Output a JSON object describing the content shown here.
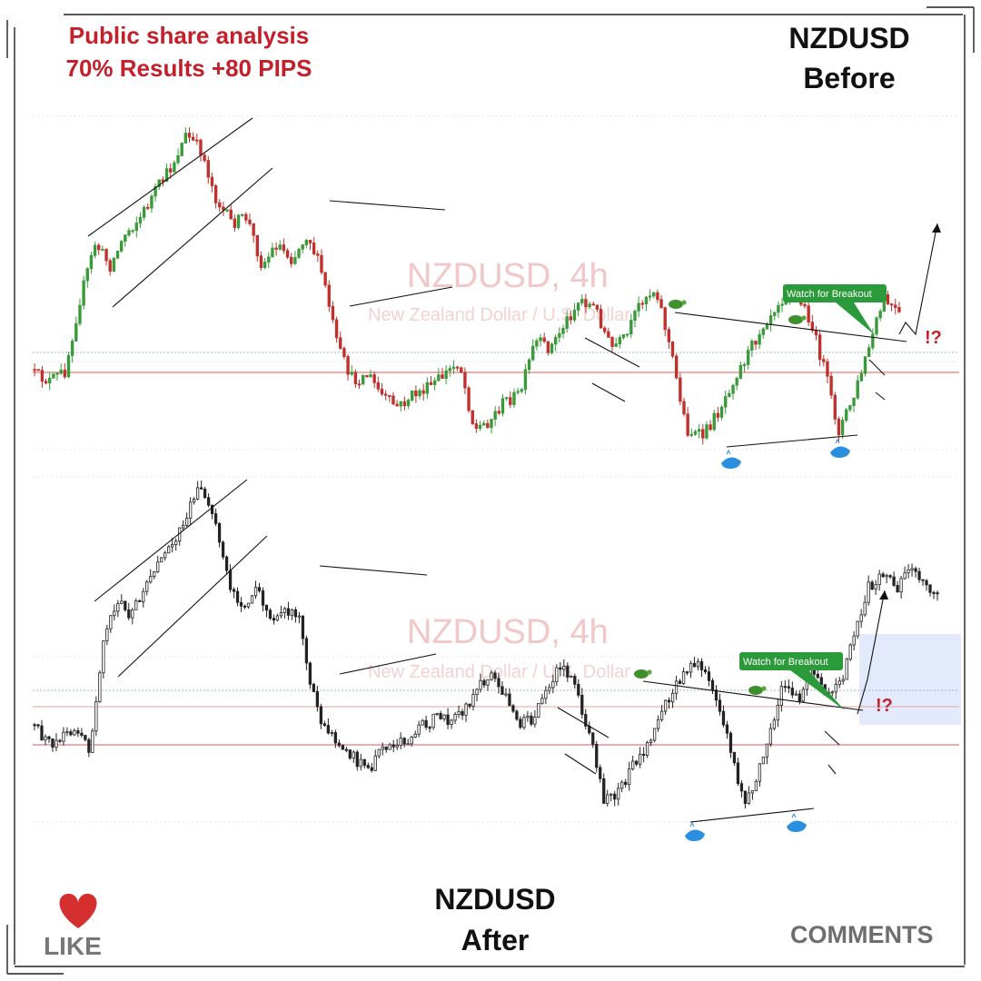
{
  "header": {
    "line1": "Public share analysis",
    "line2": "70% Results +80 PIPS"
  },
  "top_chart": {
    "pair": "NZDUSD",
    "state": "Before",
    "watermark_symbol": "NZDUSD, 4h",
    "watermark_name": "New Zealand Dollar / U.S. Dollar",
    "callout": "Watch for Breakout",
    "mark": "!?"
  },
  "bottom_chart": {
    "pair": "NZDUSD",
    "state": "After",
    "watermark_symbol": "NZDUSD, 4h",
    "watermark_name": "New Zealand Dollar / U.S. Dollar",
    "callout": "Watch for Breakout",
    "mark": "!?"
  },
  "footer": {
    "like": "LIKE",
    "comments": "COMMENTS"
  },
  "colors": {
    "headline": "#c4202b",
    "bull_candle": "#3b9a3b",
    "bear_candle": "#c0302c",
    "after_candle": "#222222",
    "callout": "#2a9a3a",
    "level_line": "#e35a5a",
    "highlight_box": "#dde6fb",
    "heart": "#d62f2f",
    "whale": "#2b8fe0",
    "turtle": "#3f8f2f"
  },
  "icons": [
    "turtle-icon",
    "whale-icon",
    "heart-icon",
    "arrow-icon"
  ],
  "chart_data": [
    {
      "type": "candlestick",
      "title": "NZDUSD, 4h",
      "subtitle": "New Zealand Dollar / U.S. Dollar",
      "state": "Before",
      "shape": [
        0.78,
        0.8,
        0.77,
        0.55,
        0.38,
        0.45,
        0.35,
        0.3,
        0.22,
        0.15,
        0.05,
        0.1,
        0.25,
        0.32,
        0.3,
        0.45,
        0.38,
        0.43,
        0.35,
        0.48,
        0.7,
        0.8,
        0.78,
        0.85,
        0.88,
        0.84,
        0.82,
        0.78,
        0.74,
        0.95,
        0.92,
        0.86,
        0.84,
        0.68,
        0.7,
        0.62,
        0.55,
        0.58,
        0.7,
        0.67,
        0.55,
        0.52,
        0.72,
        0.95,
        0.97,
        0.9,
        0.8,
        0.72,
        0.63,
        0.56,
        0.52,
        0.6,
        0.75,
        0.95,
        0.85,
        0.7,
        0.55,
        0.6
      ]
    },
    {
      "type": "candlestick",
      "title": "NZDUSD, 4h",
      "subtitle": "New Zealand Dollar / U.S. Dollar",
      "state": "After",
      "shape": [
        0.72,
        0.78,
        0.76,
        0.74,
        0.8,
        0.45,
        0.35,
        0.4,
        0.3,
        0.25,
        0.18,
        0.1,
        0.02,
        0.12,
        0.3,
        0.38,
        0.32,
        0.42,
        0.38,
        0.4,
        0.62,
        0.75,
        0.78,
        0.82,
        0.86,
        0.8,
        0.78,
        0.76,
        0.72,
        0.7,
        0.72,
        0.68,
        0.6,
        0.58,
        0.65,
        0.72,
        0.7,
        0.6,
        0.55,
        0.62,
        0.75,
        0.95,
        0.92,
        0.85,
        0.8,
        0.7,
        0.62,
        0.56,
        0.55,
        0.64,
        0.78,
        0.95,
        0.88,
        0.72,
        0.6,
        0.66,
        0.55,
        0.65,
        0.6,
        0.46,
        0.32,
        0.28,
        0.32,
        0.27,
        0.3,
        0.34
      ]
    }
  ]
}
